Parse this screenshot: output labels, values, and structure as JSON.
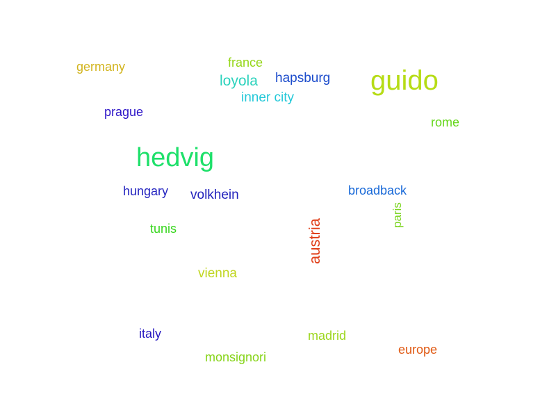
{
  "words": [
    {
      "text": "guido",
      "color": "#b6dc16"
    },
    {
      "text": "hedvig",
      "color": "#1ee06a"
    },
    {
      "text": "germany",
      "color": "#d2b41e"
    },
    {
      "text": "france",
      "color": "#94d616"
    },
    {
      "text": "loyola",
      "color": "#2ad2bc"
    },
    {
      "text": "hapsburg",
      "color": "#1c4ccc"
    },
    {
      "text": "inner city",
      "color": "#22c8d8"
    },
    {
      "text": "prague",
      "color": "#2e16c8"
    },
    {
      "text": "rome",
      "color": "#64d61a"
    },
    {
      "text": "hungary",
      "color": "#2424c0"
    },
    {
      "text": "volkhein",
      "color": "#2222bc"
    },
    {
      "text": "broadback",
      "color": "#1a6ad8"
    },
    {
      "text": "paris",
      "color": "#7ad41e"
    },
    {
      "text": "tunis",
      "color": "#38d61e"
    },
    {
      "text": "austria",
      "color": "#e0401a"
    },
    {
      "text": "vienna",
      "color": "#c0d620"
    },
    {
      "text": "italy",
      "color": "#2618c0"
    },
    {
      "text": "madrid",
      "color": "#9cd61c"
    },
    {
      "text": "europe",
      "color": "#e05a14"
    },
    {
      "text": "monsignori",
      "color": "#86d418"
    }
  ]
}
